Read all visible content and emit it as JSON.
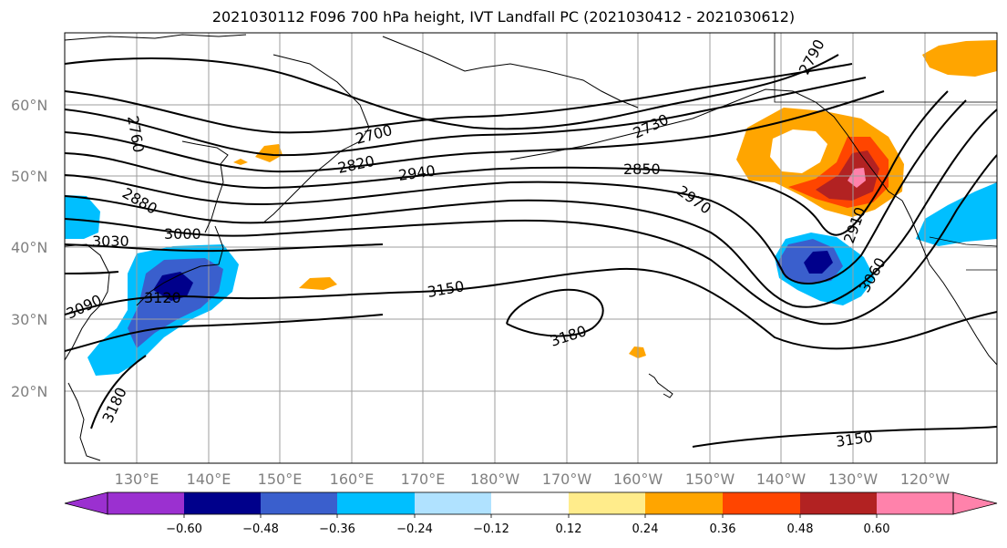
{
  "title": "2021030112 F096 700 hPa height, IVT Landfall PC (2021030412 - 2021030612)",
  "lat_labels": [
    "60°N",
    "50°N",
    "40°N",
    "30°N",
    "20°N"
  ],
  "lon_labels": [
    "130°E",
    "140°E",
    "150°E",
    "160°E",
    "170°E",
    "180°W",
    "170°W",
    "160°W",
    "150°W",
    "140°W",
    "130°W",
    "120°W"
  ],
  "contour_labels": [
    "2760",
    "2880",
    "3030",
    "3090",
    "3180",
    "3000",
    "3120",
    "2700",
    "2820",
    "2940",
    "3150",
    "3180",
    "2730",
    "2850",
    "2970",
    "2790",
    "2910",
    "3060",
    "3150"
  ],
  "colorbar": {
    "tick_labels": [
      "−0.60",
      "−0.48",
      "−0.36",
      "−0.24",
      "−0.12",
      "0.12",
      "0.24",
      "0.36",
      "0.48",
      "0.60"
    ],
    "colors": [
      "#9b30d0",
      "#00008b",
      "#3a5fcd",
      "#00bfff",
      "#b0e2ff",
      "#ffffff",
      "#ffec8b",
      "#ffa500",
      "#ff4500",
      "#b22222",
      "#ff82ab"
    ]
  }
}
